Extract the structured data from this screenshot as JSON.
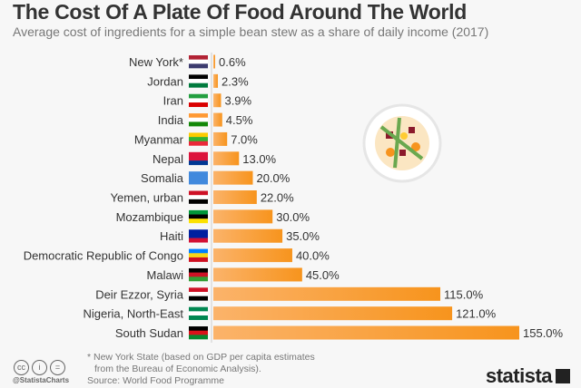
{
  "title": "The Cost Of A Plate Of Food Around The World",
  "subtitle": "Average cost of ingredients for a simple bean stew as a share of daily income (2017)",
  "chart_data": {
    "type": "bar",
    "orientation": "horizontal",
    "unit": "%",
    "categories": [
      "New York*",
      "Jordan",
      "Iran",
      "India",
      "Myanmar",
      "Nepal",
      "Somalia",
      "Yemen, urban",
      "Mozambique",
      "Haiti",
      "Democratic Republic of Congo",
      "Malawi",
      "Deir Ezzor, Syria",
      "Nigeria, North-East",
      "South Sudan"
    ],
    "values": [
      0.6,
      2.3,
      3.9,
      4.5,
      7.0,
      13.0,
      20.0,
      22.0,
      30.0,
      35.0,
      40.0,
      45.0,
      115.0,
      121.0,
      155.0
    ],
    "value_labels": [
      "0.6%",
      "2.3%",
      "3.9%",
      "4.5%",
      "7.0%",
      "13.0%",
      "20.0%",
      "22.0%",
      "30.0%",
      "35.0%",
      "40.0%",
      "45.0%",
      "115.0%",
      "121.0%",
      "155.0%"
    ],
    "flags": [
      [
        "#b22234",
        "#ffffff",
        "#3c3b6e"
      ],
      [
        "#000000",
        "#ffffff",
        "#007a3d"
      ],
      [
        "#239f40",
        "#ffffff",
        "#da0000"
      ],
      [
        "#ff9933",
        "#ffffff",
        "#138808"
      ],
      [
        "#fecb00",
        "#34b233",
        "#ea2839"
      ],
      [
        "#dc143c",
        "#dc143c",
        "#003893"
      ],
      [
        "#4189dd",
        "#4189dd",
        "#4189dd"
      ],
      [
        "#ce1126",
        "#ffffff",
        "#000000"
      ],
      [
        "#009739",
        "#000000",
        "#fce100"
      ],
      [
        "#00209f",
        "#00209f",
        "#d21034"
      ],
      [
        "#007fff",
        "#f7d618",
        "#ce1021"
      ],
      [
        "#000000",
        "#ce1126",
        "#339e35"
      ],
      [
        "#ce1126",
        "#ffffff",
        "#000000"
      ],
      [
        "#008751",
        "#ffffff",
        "#008751"
      ],
      [
        "#000000",
        "#da121a",
        "#078930"
      ]
    ],
    "bar_color": "#f7941d",
    "xlim": [
      0,
      155
    ],
    "grid": false
  },
  "footer": {
    "note_line1": "* New York State (based on GDP per capita estimates",
    "note_line2": "from the Bureau of Economic Analysis).",
    "source": "Source: World Food Programme",
    "handle": "@StatistaCharts",
    "cc_icons": [
      "cc",
      "i",
      "="
    ],
    "logo": "statista"
  }
}
